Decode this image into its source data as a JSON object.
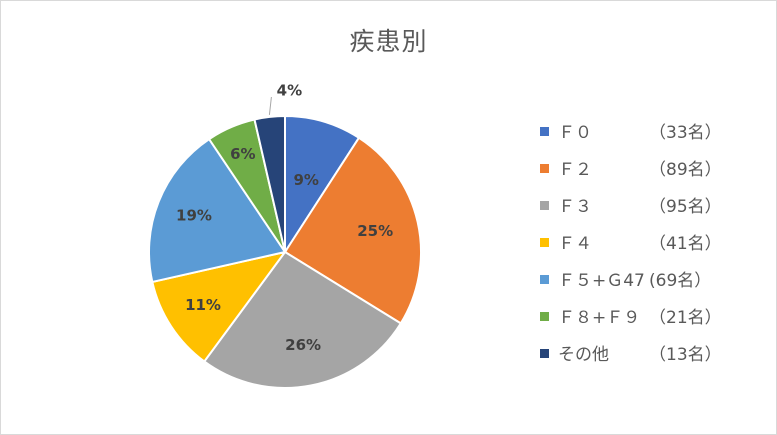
{
  "chart_data": {
    "type": "pie",
    "title": "疾患別",
    "legend_position": "right",
    "slices": [
      {
        "name": "Ｆ０",
        "count_label": "（33名）",
        "value": 33,
        "percent_label": "9%",
        "color": "#4472c4"
      },
      {
        "name": "Ｆ２",
        "count_label": "（89名）",
        "value": 89,
        "percent_label": "25%",
        "color": "#ed7d31"
      },
      {
        "name": "Ｆ３",
        "count_label": "（95名）",
        "value": 95,
        "percent_label": "26%",
        "color": "#a5a5a5"
      },
      {
        "name": "Ｆ４",
        "count_label": "（41名）",
        "value": 41,
        "percent_label": "11%",
        "color": "#ffc000"
      },
      {
        "name": "Ｆ５+Ｇ47",
        "count_label": "(69名）",
        "value": 69,
        "percent_label": "19%",
        "color": "#5b9bd5"
      },
      {
        "name": "Ｆ８+Ｆ９",
        "count_label": "（21名）",
        "value": 21,
        "percent_label": "6%",
        "color": "#70ad47"
      },
      {
        "name": "その他",
        "count_label": "（13名）",
        "value": 13,
        "percent_label": "4%",
        "color": "#264478"
      }
    ]
  }
}
